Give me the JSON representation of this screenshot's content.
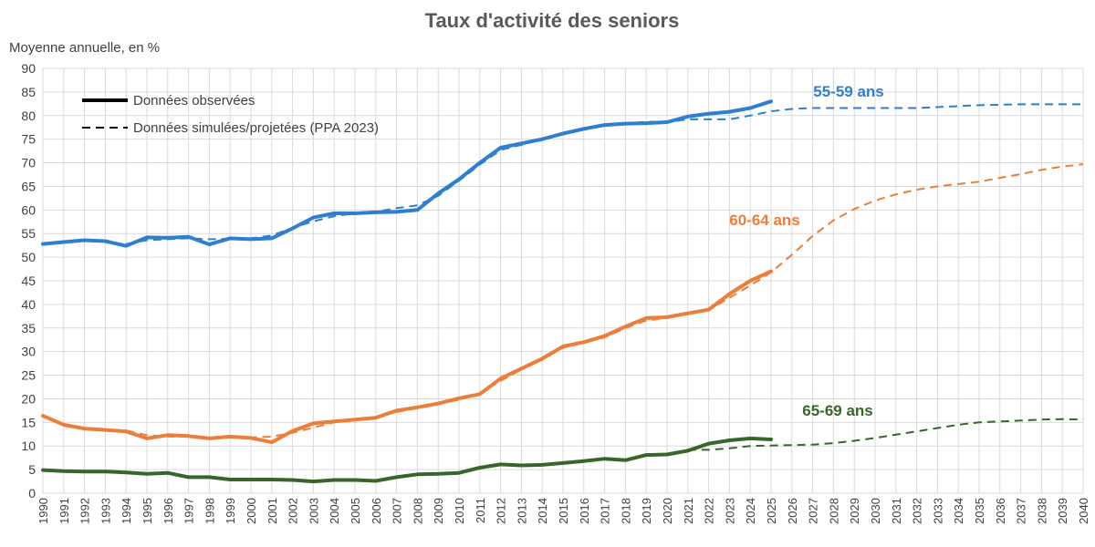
{
  "colors": {
    "s55": "#2e7fcf",
    "s60": "#ed7d3a",
    "s65": "#38662a",
    "legend": "#000000"
  },
  "chart_data": {
    "type": "line",
    "title": "Taux d'activité des seniors",
    "ylabel": "Moyenne annuelle, en %",
    "xlabel": "",
    "ylim": [
      0,
      90
    ],
    "yticks": [
      0,
      5,
      10,
      15,
      20,
      25,
      30,
      35,
      40,
      45,
      50,
      55,
      60,
      65,
      70,
      75,
      80,
      85,
      90
    ],
    "xlim": [
      1990,
      2040
    ],
    "xticks": [
      "1990",
      "1991",
      "1992",
      "1993",
      "1994",
      "1995",
      "1996",
      "1997",
      "1998",
      "1999",
      "2000",
      "2001",
      "2002",
      "2003",
      "2004",
      "2005",
      "2006",
      "2007",
      "2008",
      "2009",
      "2010",
      "2011",
      "2012",
      "2013",
      "2014",
      "2015",
      "2016",
      "2017",
      "2018",
      "2019",
      "2020",
      "2021",
      "2022",
      "2023",
      "2024",
      "2025",
      "2026",
      "2027",
      "2028",
      "2029",
      "2030",
      "2031",
      "2032",
      "2033",
      "2034",
      "2035",
      "2036",
      "2037",
      "2038",
      "2039",
      "2040"
    ],
    "grid": true,
    "legend": {
      "position": "top-left",
      "entries": [
        "Données observées",
        "Données simulées/projetées (PPA 2023)"
      ]
    },
    "series": [
      {
        "name": "55-59 ans",
        "color_key": "s55",
        "observed": {
          "x": [
            1990,
            1991,
            1992,
            1993,
            1994,
            1995,
            1996,
            1997,
            1998,
            1999,
            2000,
            2001,
            2002,
            2003,
            2004,
            2005,
            2006,
            2007,
            2008,
            2009,
            2010,
            2011,
            2012,
            2013,
            2014,
            2015,
            2016,
            2017,
            2018,
            2019,
            2020,
            2021,
            2022,
            2023,
            2024,
            2025
          ],
          "y": [
            52.8,
            53.2,
            53.6,
            53.4,
            52.4,
            54.2,
            54.1,
            54.3,
            52.7,
            54.0,
            53.8,
            54.0,
            56.1,
            58.4,
            59.3,
            59.3,
            59.5,
            59.6,
            60.0,
            63.5,
            66.5,
            70.0,
            73.2,
            74.1,
            75.0,
            76.2,
            77.2,
            78.0,
            78.3,
            78.4,
            78.6,
            79.8,
            80.4,
            80.8,
            81.6,
            83.0
          ]
        },
        "projected": {
          "x": [
            1994,
            1995,
            1996,
            1997,
            1998,
            1999,
            2000,
            2001,
            2002,
            2003,
            2004,
            2005,
            2006,
            2007,
            2008,
            2009,
            2010,
            2011,
            2012,
            2013,
            2014,
            2015,
            2016,
            2017,
            2018,
            2019,
            2020,
            2021,
            2022,
            2023,
            2024,
            2025,
            2026,
            2027,
            2028,
            2029,
            2030,
            2031,
            2032,
            2033,
            2034,
            2035,
            2036,
            2037,
            2038,
            2039,
            2040
          ],
          "y": [
            52.8,
            53.6,
            53.8,
            54.0,
            53.8,
            53.9,
            54.0,
            54.6,
            56.2,
            57.6,
            58.7,
            59.3,
            59.6,
            60.4,
            61.0,
            63.0,
            66.2,
            69.6,
            72.7,
            73.8,
            75.0,
            76.0,
            77.0,
            77.9,
            78.3,
            78.7,
            78.6,
            79.2,
            79.2,
            79.2,
            80.0,
            80.9,
            81.4,
            81.6,
            81.6,
            81.6,
            81.6,
            81.6,
            81.6,
            81.8,
            82.0,
            82.2,
            82.3,
            82.4,
            82.4,
            82.4,
            82.4
          ]
        }
      },
      {
        "name": "60-64 ans",
        "color_key": "s60",
        "observed": {
          "x": [
            1990,
            1991,
            1992,
            1993,
            1994,
            1995,
            1996,
            1997,
            1998,
            1999,
            2000,
            2001,
            2002,
            2003,
            2004,
            2005,
            2006,
            2007,
            2008,
            2009,
            2010,
            2011,
            2012,
            2013,
            2014,
            2015,
            2016,
            2017,
            2018,
            2019,
            2020,
            2021,
            2022,
            2023,
            2024,
            2025
          ],
          "y": [
            16.4,
            14.5,
            13.7,
            13.4,
            13.1,
            11.6,
            12.3,
            12.1,
            11.6,
            12.0,
            11.7,
            10.8,
            13.2,
            14.8,
            15.2,
            15.6,
            16.0,
            17.5,
            18.2,
            19.0,
            20.1,
            21.0,
            24.3,
            26.4,
            28.5,
            31.1,
            32.0,
            33.3,
            35.3,
            37.1,
            37.3,
            38.1,
            38.9,
            42.2,
            45.0,
            47.0
          ]
        },
        "projected": {
          "x": [
            1994,
            1995,
            1996,
            1997,
            1998,
            1999,
            2000,
            2001,
            2002,
            2003,
            2004,
            2005,
            2006,
            2007,
            2008,
            2009,
            2010,
            2011,
            2012,
            2013,
            2014,
            2015,
            2016,
            2017,
            2018,
            2019,
            2020,
            2021,
            2022,
            2023,
            2024,
            2025,
            2026,
            2027,
            2028,
            2029,
            2030,
            2031,
            2032,
            2033,
            2034,
            2035,
            2036,
            2037,
            2038,
            2039,
            2040
          ],
          "y": [
            13.3,
            12.3,
            12.0,
            12.0,
            11.8,
            11.8,
            11.8,
            12.0,
            12.8,
            13.9,
            15.0,
            15.6,
            16.0,
            17.2,
            18.0,
            18.9,
            19.8,
            21.2,
            23.8,
            26.2,
            28.3,
            30.8,
            32.0,
            33.0,
            35.0,
            36.6,
            37.1,
            38.0,
            38.8,
            41.4,
            44.0,
            46.8,
            50.5,
            54.5,
            57.8,
            60.2,
            62.0,
            63.3,
            64.3,
            65.0,
            65.5,
            66.0,
            66.8,
            67.6,
            68.5,
            69.2,
            69.7
          ]
        }
      },
      {
        "name": "65-69 ans",
        "color_key": "s65",
        "observed": {
          "x": [
            1990,
            1991,
            1992,
            1993,
            1994,
            1995,
            1996,
            1997,
            1998,
            1999,
            2000,
            2001,
            2002,
            2003,
            2004,
            2005,
            2006,
            2007,
            2008,
            2009,
            2010,
            2011,
            2012,
            2013,
            2014,
            2015,
            2016,
            2017,
            2018,
            2019,
            2020,
            2021,
            2022,
            2023,
            2024,
            2025
          ],
          "y": [
            4.9,
            4.7,
            4.6,
            4.6,
            4.4,
            4.1,
            4.3,
            3.4,
            3.4,
            2.9,
            2.9,
            2.9,
            2.8,
            2.5,
            2.8,
            2.8,
            2.6,
            3.4,
            4.0,
            4.1,
            4.3,
            5.4,
            6.1,
            5.9,
            6.0,
            6.4,
            6.8,
            7.3,
            7.0,
            8.1,
            8.2,
            9.0,
            10.5,
            11.2,
            11.6,
            11.4
          ]
        },
        "projected": {
          "x": [
            2021,
            2022,
            2023,
            2024,
            2025,
            2026,
            2027,
            2028,
            2029,
            2030,
            2031,
            2032,
            2033,
            2034,
            2035,
            2036,
            2037,
            2038,
            2039,
            2040
          ],
          "y": [
            9.2,
            9.2,
            9.5,
            10.0,
            10.1,
            10.2,
            10.3,
            10.6,
            11.1,
            11.7,
            12.4,
            13.1,
            13.8,
            14.5,
            15.0,
            15.2,
            15.4,
            15.6,
            15.7,
            15.6
          ]
        }
      }
    ]
  }
}
